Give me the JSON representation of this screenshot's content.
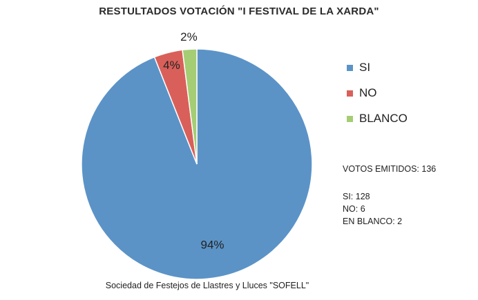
{
  "chart_data": {
    "type": "pie",
    "title": "RESTULTADOS VOTACIÓN \"I FESTIVAL DE LA XARDA\"",
    "categories": [
      "SI",
      "NO",
      "BLANCO"
    ],
    "values": [
      94,
      4,
      2
    ],
    "labels": [
      "94%",
      "4%",
      "2%"
    ],
    "colors": [
      "#5b93c7",
      "#d9605a",
      "#a5cd74"
    ],
    "legend": {
      "position": "right",
      "entries": [
        "SI",
        "NO",
        "BLANCO"
      ]
    }
  },
  "summary": {
    "total": "VOTOS EMITIDOS: 136",
    "si": "SI: 128",
    "no": "NO: 6",
    "blanco": "EN BLANCO: 2"
  },
  "footer": "Sociedad de Festejos de Llastres y Lluces \"SOFELL\""
}
